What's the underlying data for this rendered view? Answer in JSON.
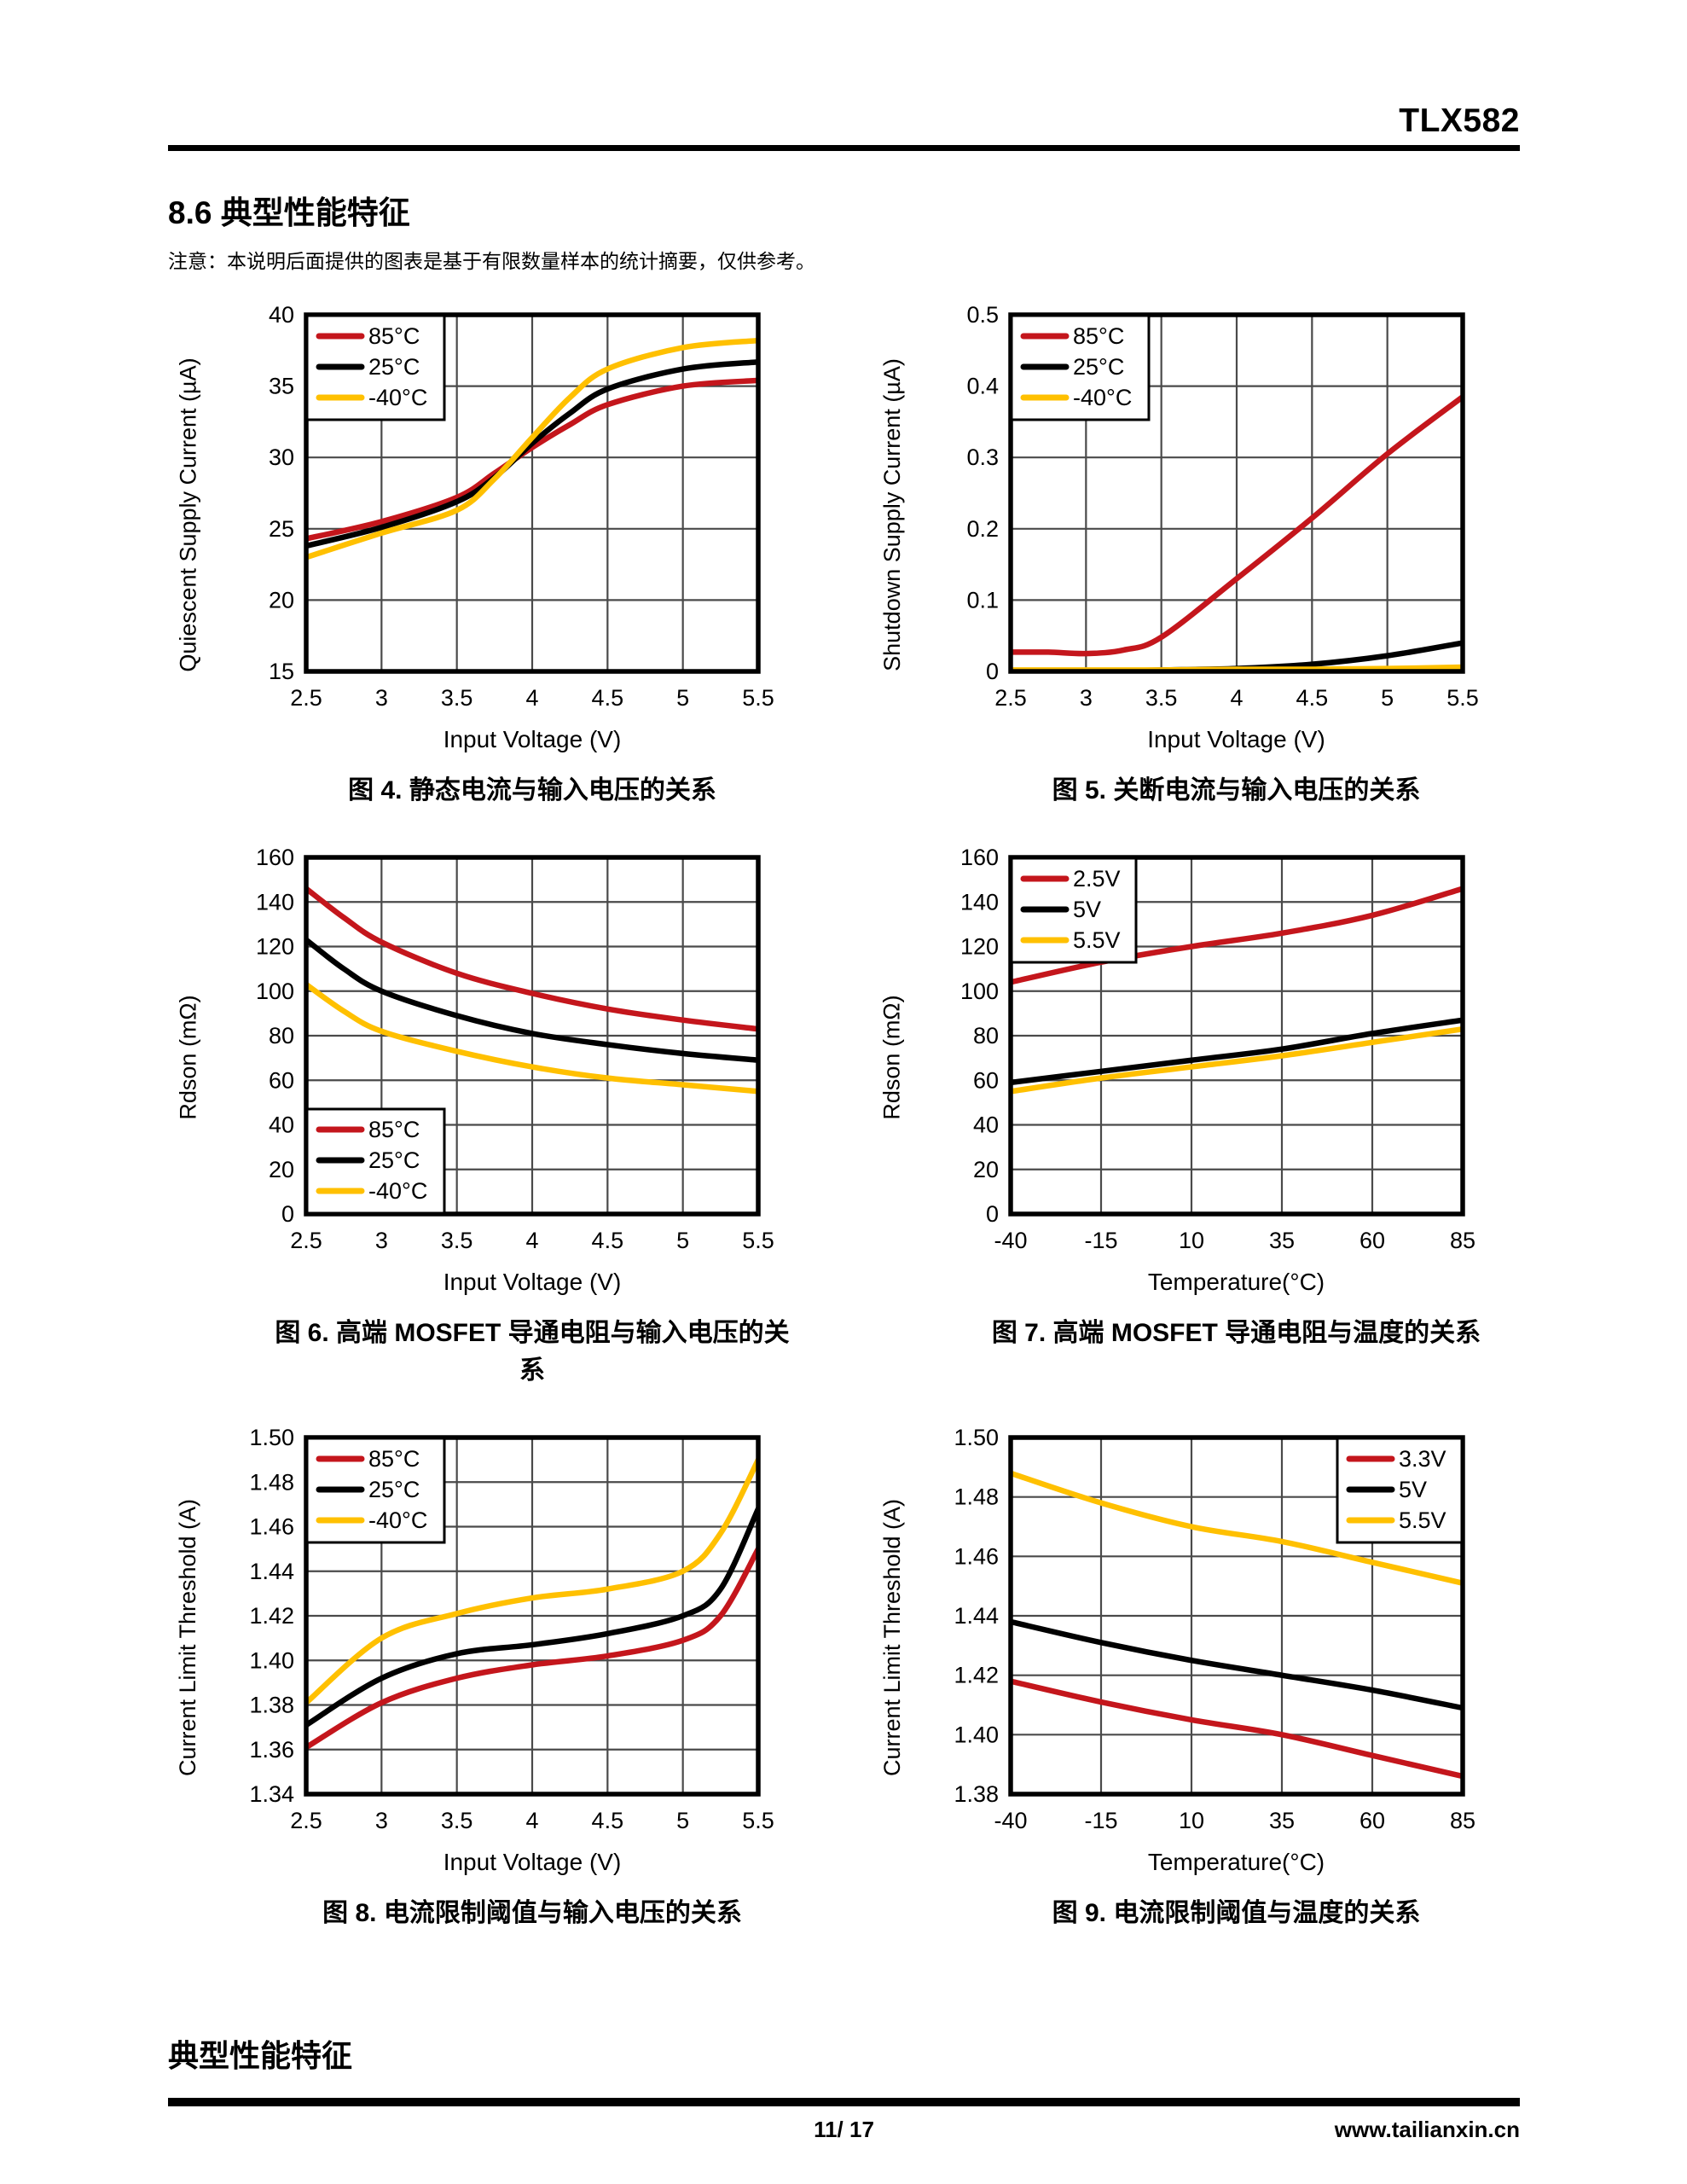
{
  "page": {
    "doc_title": "TLX582",
    "section_title": "8.6 典型性能特征",
    "note": "注意：本说明后面提供的图表是基于有限数量样本的统计摘要，仅供参考。",
    "footer_heading": "典型性能特征",
    "page_number": "11/ 17",
    "website": "www.tailianxin.cn"
  },
  "colors": {
    "red": "#C4161C",
    "black": "#000000",
    "yellow": "#FFC000",
    "grid": "#4a4a4a",
    "plot_border": "#000000"
  },
  "chart_data": [
    {
      "id": "fig4",
      "type": "line",
      "caption": "图 4. 静态电流与输入电压的关系",
      "xlabel": "Input Voltage (V)",
      "ylabel": "Quiescent Supply Current (µA)",
      "xlim": [
        2.5,
        5.5
      ],
      "ylim": [
        15,
        40
      ],
      "xticks": [
        2.5,
        3,
        3.5,
        4,
        4.5,
        5,
        5.5
      ],
      "xtick_labels": [
        "2.5",
        "3",
        "3.5",
        "4",
        "4.5",
        "5",
        "5.5"
      ],
      "yticks": [
        15,
        20,
        25,
        30,
        35,
        40
      ],
      "ytick_labels": [
        "15",
        "20",
        "25",
        "30",
        "35",
        "40"
      ],
      "legend": {
        "position": "top-left",
        "entries": [
          {
            "label": "85°C",
            "color": "red"
          },
          {
            "label": "25°C",
            "color": "black"
          },
          {
            "label": "-40°C",
            "color": "yellow"
          }
        ]
      },
      "x": [
        2.5,
        3,
        3.5,
        3.75,
        4,
        4.25,
        4.5,
        5,
        5.5
      ],
      "series": [
        {
          "name": "85°C",
          "color": "red",
          "values": [
            24.3,
            25.5,
            27.2,
            28.9,
            30.7,
            32.3,
            33.7,
            35.0,
            35.4
          ]
        },
        {
          "name": "25°C",
          "color": "black",
          "values": [
            23.8,
            25.1,
            26.9,
            28.6,
            31.0,
            33.1,
            34.8,
            36.2,
            36.7
          ]
        },
        {
          "name": "-40°C",
          "color": "yellow",
          "values": [
            23.0,
            24.7,
            26.3,
            28.5,
            31.4,
            34.2,
            36.2,
            37.7,
            38.2
          ]
        }
      ]
    },
    {
      "id": "fig5",
      "type": "line",
      "caption": "图 5. 关断电流与输入电压的关系",
      "xlabel": "Input Voltage (V)",
      "ylabel": "Shutdown Supply Current (µA)",
      "xlim": [
        2.5,
        5.5
      ],
      "ylim": [
        0,
        0.5
      ],
      "xticks": [
        2.5,
        3,
        3.5,
        4,
        4.5,
        5,
        5.5
      ],
      "xtick_labels": [
        "2.5",
        "3",
        "3.5",
        "4",
        "4.5",
        "5",
        "5.5"
      ],
      "yticks": [
        0,
        0.1,
        0.2,
        0.3,
        0.4,
        0.5
      ],
      "ytick_labels": [
        "0",
        "0.1",
        "0.2",
        "0.3",
        "0.4",
        "0.5"
      ],
      "legend": {
        "position": "top-left",
        "entries": [
          {
            "label": "85°C",
            "color": "red"
          },
          {
            "label": "25°C",
            "color": "black"
          },
          {
            "label": "-40°C",
            "color": "yellow"
          }
        ]
      },
      "x": [
        2.5,
        2.75,
        3,
        3.25,
        3.5,
        4,
        4.5,
        5,
        5.5
      ],
      "series": [
        {
          "name": "85°C",
          "color": "red",
          "values": [
            0.027,
            0.027,
            0.025,
            0.03,
            0.048,
            0.13,
            0.215,
            0.305,
            0.385
          ]
        },
        {
          "name": "25°C",
          "color": "black",
          "values": [
            0.001,
            0.001,
            0.001,
            0.001,
            0.002,
            0.004,
            0.01,
            0.022,
            0.04
          ]
        },
        {
          "name": "-40°C",
          "color": "yellow",
          "values": [
            0.002,
            0.002,
            0.002,
            0.002,
            0.002,
            0.003,
            0.003,
            0.004,
            0.006
          ]
        }
      ]
    },
    {
      "id": "fig6",
      "type": "line",
      "caption": "图 6. 高端 MOSFET 导通电阻与输入电压的关系",
      "xlabel": "Input Voltage (V)",
      "ylabel": "Rdson (mΩ)",
      "xlim": [
        2.5,
        5.5
      ],
      "ylim": [
        0,
        160
      ],
      "xticks": [
        2.5,
        3,
        3.5,
        4,
        4.5,
        5,
        5.5
      ],
      "xtick_labels": [
        "2.5",
        "3",
        "3.5",
        "4",
        "4.5",
        "5",
        "5.5"
      ],
      "yticks": [
        0,
        20,
        40,
        60,
        80,
        100,
        120,
        140,
        160
      ],
      "ytick_labels": [
        "0",
        "20",
        "40",
        "60",
        "80",
        "100",
        "120",
        "140",
        "160"
      ],
      "legend": {
        "position": "bottom-left",
        "entries": [
          {
            "label": "85°C",
            "color": "red"
          },
          {
            "label": "25°C",
            "color": "black"
          },
          {
            "label": "-40°C",
            "color": "yellow"
          }
        ]
      },
      "x": [
        2.5,
        2.75,
        3,
        3.5,
        4,
        4.5,
        5,
        5.5
      ],
      "series": [
        {
          "name": "85°C",
          "color": "red",
          "values": [
            146,
            133,
            122,
            108,
            99,
            92,
            87,
            83
          ]
        },
        {
          "name": "25°C",
          "color": "black",
          "values": [
            123,
            110,
            100,
            89,
            81,
            76,
            72,
            69
          ]
        },
        {
          "name": "-40°C",
          "color": "yellow",
          "values": [
            103,
            91,
            82,
            73,
            66,
            61,
            58,
            55
          ]
        }
      ]
    },
    {
      "id": "fig7",
      "type": "line",
      "caption": "图 7. 高端 MOSFET 导通电阻与温度的关系",
      "xlabel": "Temperature(°C)",
      "ylabel": "Rdson (mΩ)",
      "xlim": [
        -40,
        85
      ],
      "ylim": [
        0,
        160
      ],
      "xticks": [
        -40,
        -15,
        10,
        35,
        60,
        85
      ],
      "xtick_labels": [
        "-40",
        "-15",
        "10",
        "35",
        "60",
        "85"
      ],
      "yticks": [
        0,
        20,
        40,
        60,
        80,
        100,
        120,
        140,
        160
      ],
      "ytick_labels": [
        "0",
        "20",
        "40",
        "60",
        "80",
        "100",
        "120",
        "140",
        "160"
      ],
      "legend": {
        "position": "top-left",
        "entries": [
          {
            "label": "2.5V",
            "color": "red"
          },
          {
            "label": "5V",
            "color": "black"
          },
          {
            "label": "5.5V",
            "color": "yellow"
          }
        ]
      },
      "x": [
        -40,
        -15,
        10,
        35,
        60,
        85
      ],
      "series": [
        {
          "name": "2.5V",
          "color": "red",
          "values": [
            104,
            113,
            120,
            126,
            134,
            146
          ]
        },
        {
          "name": "5V",
          "color": "black",
          "values": [
            59,
            64,
            69,
            74,
            81,
            87
          ]
        },
        {
          "name": "5.5V",
          "color": "yellow",
          "values": [
            55,
            61,
            66,
            71,
            77,
            83
          ]
        }
      ]
    },
    {
      "id": "fig8",
      "type": "line",
      "caption": "图 8. 电流限制阈值与输入电压的关系",
      "xlabel": "Input Voltage (V)",
      "ylabel": "Current Limit Threshold (A)",
      "xlim": [
        2.5,
        5.5
      ],
      "ylim": [
        1.34,
        1.5
      ],
      "xticks": [
        2.5,
        3,
        3.5,
        4,
        4.5,
        5,
        5.5
      ],
      "xtick_labels": [
        "2.5",
        "3",
        "3.5",
        "4",
        "4.5",
        "5",
        "5.5"
      ],
      "yticks": [
        1.34,
        1.36,
        1.38,
        1.4,
        1.42,
        1.44,
        1.46,
        1.48,
        1.5
      ],
      "ytick_labels": [
        "1.34",
        "1.36",
        "1.38",
        "1.40",
        "1.42",
        "1.44",
        "1.46",
        "1.48",
        "1.50"
      ],
      "legend": {
        "position": "top-left",
        "entries": [
          {
            "label": "85°C",
            "color": "red"
          },
          {
            "label": "25°C",
            "color": "black"
          },
          {
            "label": "-40°C",
            "color": "yellow"
          }
        ]
      },
      "x": [
        2.5,
        3,
        3.5,
        4,
        4.5,
        5,
        5.25,
        5.5
      ],
      "series": [
        {
          "name": "85°C",
          "color": "red",
          "values": [
            1.361,
            1.381,
            1.392,
            1.398,
            1.402,
            1.409,
            1.42,
            1.45
          ]
        },
        {
          "name": "25°C",
          "color": "black",
          "values": [
            1.371,
            1.392,
            1.403,
            1.407,
            1.412,
            1.42,
            1.432,
            1.468
          ]
        },
        {
          "name": "-40°C",
          "color": "yellow",
          "values": [
            1.381,
            1.41,
            1.421,
            1.428,
            1.432,
            1.44,
            1.457,
            1.49
          ]
        }
      ]
    },
    {
      "id": "fig9",
      "type": "line",
      "caption": "图 9. 电流限制阈值与温度的关系",
      "xlabel": "Temperature(°C)",
      "ylabel": "Current Limit Threshold (A)",
      "xlim": [
        -40,
        85
      ],
      "ylim": [
        1.38,
        1.5
      ],
      "xticks": [
        -40,
        -15,
        10,
        35,
        60,
        85
      ],
      "xtick_labels": [
        "-40",
        "-15",
        "10",
        "35",
        "60",
        "85"
      ],
      "yticks": [
        1.38,
        1.4,
        1.42,
        1.44,
        1.46,
        1.48,
        1.5
      ],
      "ytick_labels": [
        "1.38",
        "1.40",
        "1.42",
        "1.44",
        "1.46",
        "1.48",
        "1.50"
      ],
      "legend": {
        "position": "top-right",
        "entries": [
          {
            "label": "3.3V",
            "color": "red"
          },
          {
            "label": "5V",
            "color": "black"
          },
          {
            "label": "5.5V",
            "color": "yellow"
          }
        ]
      },
      "x": [
        -40,
        -15,
        10,
        35,
        60,
        85
      ],
      "series": [
        {
          "name": "3.3V",
          "color": "red",
          "values": [
            1.418,
            1.411,
            1.405,
            1.4,
            1.393,
            1.386
          ]
        },
        {
          "name": "5V",
          "color": "black",
          "values": [
            1.438,
            1.431,
            1.425,
            1.42,
            1.415,
            1.409
          ]
        },
        {
          "name": "5.5V",
          "color": "yellow",
          "values": [
            1.488,
            1.478,
            1.47,
            1.465,
            1.458,
            1.451
          ]
        }
      ]
    }
  ]
}
